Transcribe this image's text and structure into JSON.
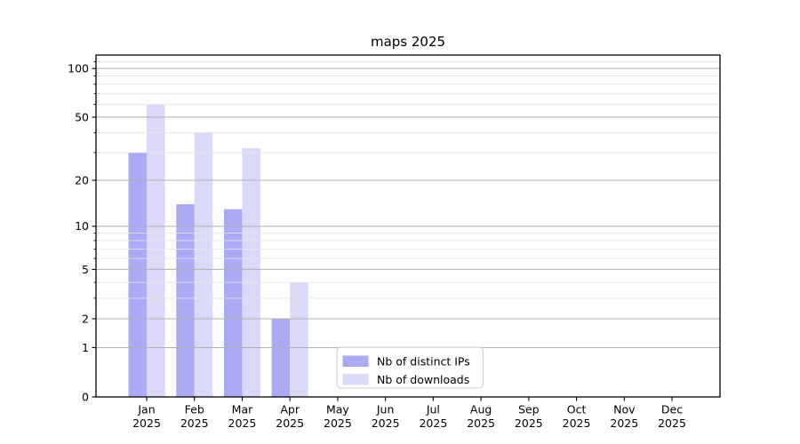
{
  "title": "maps 2025",
  "chart_data": {
    "type": "bar",
    "title": "maps 2025",
    "x_months": [
      "Jan",
      "Feb",
      "Mar",
      "Apr",
      "May",
      "Jun",
      "Jul",
      "Aug",
      "Sep",
      "Oct",
      "Nov",
      "Dec"
    ],
    "x_year": "2025",
    "categories": [
      "Jan 2025",
      "Feb 2025",
      "Mar 2025",
      "Apr 2025",
      "May 2025",
      "Jun 2025",
      "Jul 2025",
      "Aug 2025",
      "Sep 2025",
      "Oct 2025",
      "Nov 2025",
      "Dec 2025"
    ],
    "series": [
      {
        "name": "Nb of distinct IPs",
        "color": "#aaaaf5",
        "values": [
          30,
          14,
          13,
          2,
          0,
          0,
          0,
          0,
          0,
          0,
          0,
          0
        ]
      },
      {
        "name": "Nb of downloads",
        "color": "#dadaf8",
        "values": [
          60,
          40,
          32,
          4,
          0,
          0,
          0,
          0,
          0,
          0,
          0,
          0
        ]
      }
    ],
    "yscale": "log(1+v)",
    "ylim": [
      0,
      121
    ],
    "y_major_ticks": [
      0,
      1,
      2,
      5,
      10,
      20,
      50,
      100
    ],
    "y_minor_gridlines": [
      3,
      4,
      6,
      7,
      8,
      9,
      30,
      40,
      60,
      70,
      80,
      90,
      110
    ],
    "grid": true,
    "legend_position": "lower center"
  },
  "colors": {
    "major_grid": "#b0b0b0",
    "minor_grid": "#e6e6e6",
    "axis": "#000000",
    "text": "#000000",
    "legend_border": "#cccccc",
    "background": "#ffffff"
  }
}
